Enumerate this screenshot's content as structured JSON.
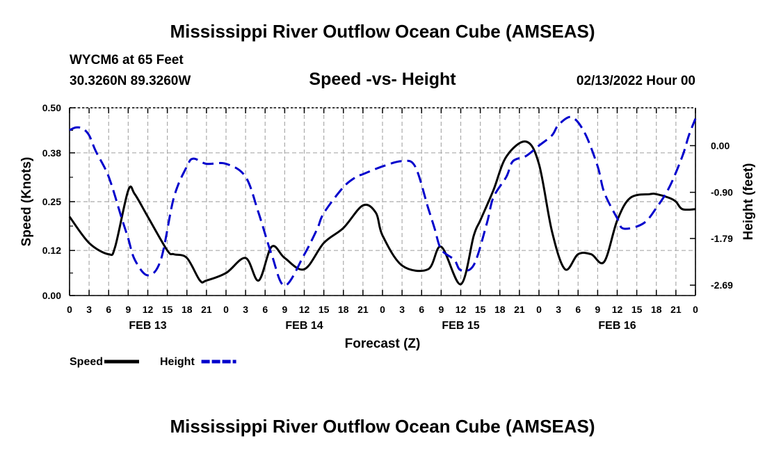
{
  "header": {
    "title": "Mississippi River Outflow Ocean Cube (AMSEAS)",
    "station": "WYCM6 at 65 Feet",
    "location": "30.3260N  89.3260W",
    "chart_title": "Speed -vs- Height",
    "datetime": "02/13/2022 Hour 00"
  },
  "footer": {
    "title": "Mississippi River Outflow Ocean Cube (AMSEAS)"
  },
  "chart_data": {
    "type": "line",
    "title": "Speed -vs- Height",
    "xlabel": "Forecast (Z)",
    "ylabel": "Speed (Knots)",
    "ylabel_right": "Height (feet)",
    "x_range_hours": [
      0,
      96
    ],
    "x_tick_step_hours": 3,
    "x_tick_labels": [
      "0",
      "3",
      "6",
      "9",
      "12",
      "15",
      "18",
      "21",
      "0",
      "3",
      "6",
      "9",
      "12",
      "15",
      "18",
      "21",
      "0",
      "3",
      "6",
      "9",
      "12",
      "15",
      "18",
      "21",
      "0",
      "3",
      "6",
      "9",
      "12",
      "15",
      "18",
      "21",
      "0"
    ],
    "day_labels": [
      {
        "hour": 12,
        "label": "FEB 13"
      },
      {
        "hour": 36,
        "label": "FEB 14"
      },
      {
        "hour": 60,
        "label": "FEB 15"
      },
      {
        "hour": 84,
        "label": "FEB 16"
      }
    ],
    "y_left": {
      "range": [
        0,
        0.5
      ],
      "ticks": [
        0.0,
        0.12,
        0.25,
        0.38,
        0.5
      ],
      "tick_labels": [
        "0.00",
        "0.12",
        "0.25",
        "0.38",
        "0.50"
      ]
    },
    "y_right": {
      "range": [
        -2.89,
        0.73
      ],
      "ticks": [
        0.0,
        -0.9,
        -1.79,
        -2.69
      ],
      "tick_labels": [
        "0.00",
        "-0.90",
        "-1.79",
        "-2.69"
      ]
    },
    "series": [
      {
        "name": "Speed",
        "axis": "left",
        "color": "#000000",
        "dash": "solid",
        "x": [
          0,
          3,
          6,
          7,
          9,
          10,
          12,
          15,
          16,
          18,
          20,
          21,
          24,
          27,
          29,
          31,
          33,
          36,
          39,
          42,
          45,
          47,
          48,
          51,
          55,
          57,
          60,
          62,
          63,
          65,
          67,
          70,
          72,
          74,
          76,
          78,
          80,
          82,
          84,
          86,
          89,
          90,
          92,
          93,
          94,
          96
        ],
        "y": [
          0.21,
          0.14,
          0.11,
          0.13,
          0.28,
          0.27,
          0.21,
          0.12,
          0.11,
          0.1,
          0.04,
          0.04,
          0.06,
          0.1,
          0.04,
          0.13,
          0.1,
          0.07,
          0.14,
          0.18,
          0.24,
          0.22,
          0.16,
          0.08,
          0.07,
          0.13,
          0.03,
          0.16,
          0.2,
          0.28,
          0.37,
          0.41,
          0.35,
          0.17,
          0.07,
          0.11,
          0.11,
          0.09,
          0.2,
          0.26,
          0.27,
          0.27,
          0.26,
          0.25,
          0.23,
          0.23
        ]
      },
      {
        "name": "Height",
        "axis": "right",
        "color": "#0000cc",
        "dash": "dashed",
        "x": [
          0,
          1,
          2,
          3,
          4,
          6,
          8,
          9,
          10,
          12,
          14,
          16,
          18,
          19,
          21,
          24,
          27,
          29,
          31,
          33,
          36,
          38,
          39,
          42,
          44,
          45,
          48,
          51,
          53,
          55,
          56,
          57,
          59,
          60,
          62,
          64,
          65,
          67,
          68,
          70,
          72,
          74,
          75,
          77,
          79,
          81,
          82,
          84,
          85,
          88,
          90,
          92,
          94,
          95,
          96
        ],
        "y": [
          0.3,
          0.35,
          0.33,
          0.2,
          -0.1,
          -0.6,
          -1.4,
          -1.79,
          -2.2,
          -2.5,
          -2.2,
          -1.0,
          -0.4,
          -0.25,
          -0.35,
          -0.35,
          -0.6,
          -1.3,
          -2.1,
          -2.7,
          -2.1,
          -1.6,
          -1.3,
          -0.8,
          -0.6,
          -0.55,
          -0.4,
          -0.3,
          -0.4,
          -1.2,
          -1.6,
          -2.0,
          -2.2,
          -2.4,
          -2.3,
          -1.5,
          -1.0,
          -0.6,
          -0.3,
          -0.2,
          0.0,
          0.2,
          0.4,
          0.55,
          0.25,
          -0.4,
          -0.9,
          -1.4,
          -1.6,
          -1.5,
          -1.2,
          -0.8,
          -0.2,
          0.2,
          0.52
        ]
      }
    ],
    "legend": [
      {
        "label": "Speed",
        "color": "#000000",
        "dash": "solid"
      },
      {
        "label": "Height",
        "color": "#0000cc",
        "dash": "dashed"
      }
    ]
  }
}
